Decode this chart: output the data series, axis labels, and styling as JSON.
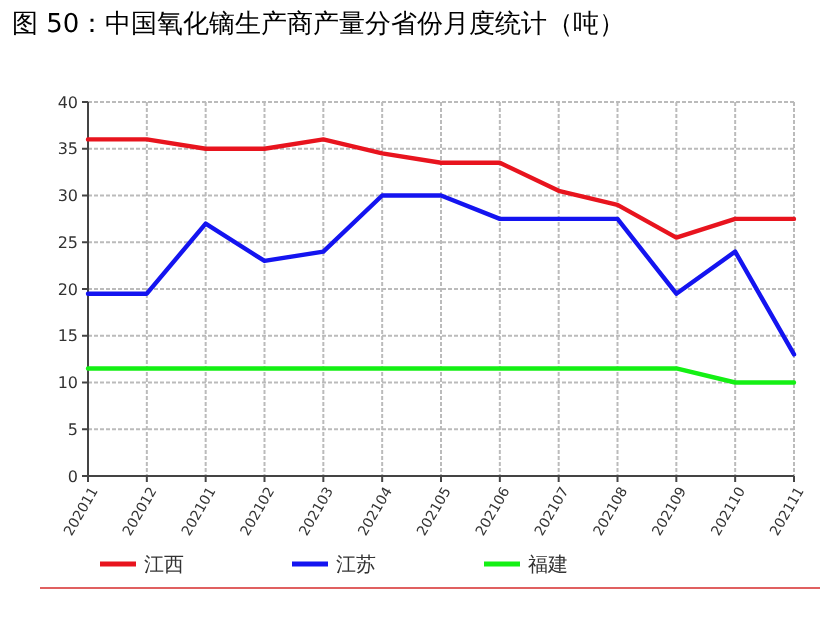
{
  "chart_data": {
    "type": "line",
    "title": "图 50：中国氧化镝生产商产量分省份月度统计（吨）",
    "categories": [
      "202011",
      "202012",
      "202101",
      "202102",
      "202103",
      "202104",
      "202105",
      "202106",
      "202107",
      "202108",
      "202109",
      "202110",
      "202111"
    ],
    "series": [
      {
        "name": "江西",
        "color": "#e8141e",
        "values": [
          36,
          36,
          35,
          35,
          36,
          34.5,
          33.5,
          33.5,
          30.5,
          29,
          25.5,
          27.5,
          27.5
        ]
      },
      {
        "name": "江苏",
        "color": "#1414f0",
        "values": [
          19.5,
          19.5,
          27,
          23,
          24,
          30,
          30,
          27.5,
          27.5,
          27.5,
          19.5,
          24,
          13
        ]
      },
      {
        "name": "福建",
        "color": "#14f014",
        "values": [
          11.5,
          11.5,
          11.5,
          11.5,
          11.5,
          11.5,
          11.5,
          11.5,
          11.5,
          11.5,
          11.5,
          10,
          10
        ]
      }
    ],
    "ylim": [
      0,
      40
    ],
    "yticks": [
      0,
      5,
      10,
      15,
      20,
      25,
      30,
      35,
      40
    ],
    "grid": true,
    "legend": "bottom",
    "marker": "none",
    "line_style": "solid"
  }
}
